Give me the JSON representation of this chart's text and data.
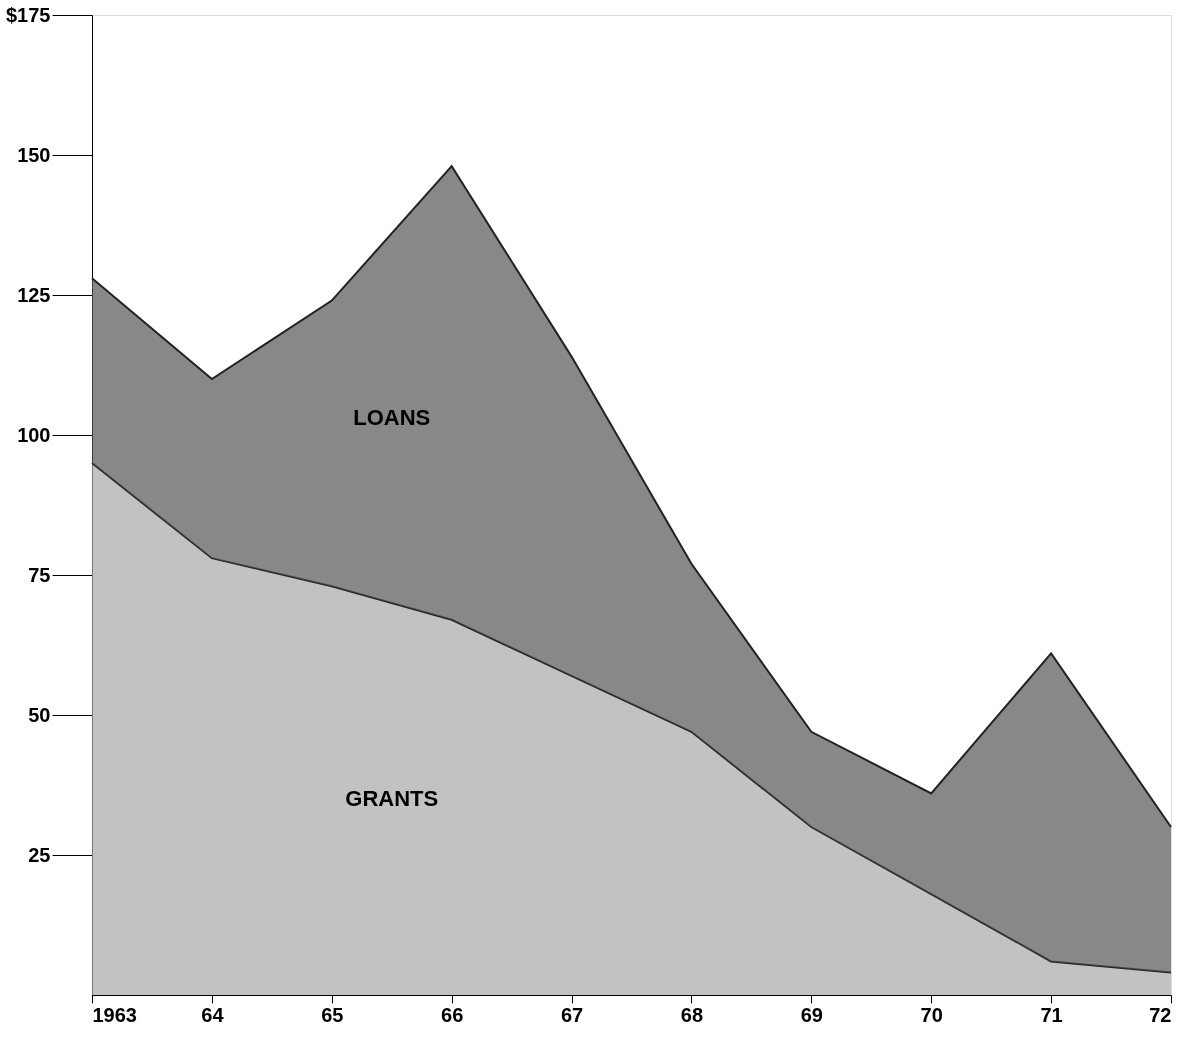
{
  "chart_data": {
    "type": "area",
    "stacked": true,
    "x": [
      1963,
      1964,
      1965,
      1966,
      1967,
      1968,
      1969,
      1970,
      1971,
      1972
    ],
    "series": [
      {
        "name": "GRANTS",
        "color": "#a8a8a8",
        "values": [
          95,
          78,
          73,
          67,
          57,
          47,
          30,
          18,
          6,
          4
        ]
      },
      {
        "name": "LOANS",
        "color": "#555555",
        "values": [
          33,
          32,
          51,
          81,
          57,
          30,
          17,
          18,
          55,
          26
        ]
      }
    ],
    "xlim": [
      1963,
      1972
    ],
    "xticks": [
      {
        "value": 1963,
        "label": "1963"
      },
      {
        "value": 1964,
        "label": "64"
      },
      {
        "value": 1965,
        "label": "65"
      },
      {
        "value": 1966,
        "label": "66"
      },
      {
        "value": 1967,
        "label": "67"
      },
      {
        "value": 1968,
        "label": "68"
      },
      {
        "value": 1969,
        "label": "69"
      },
      {
        "value": 1970,
        "label": "70"
      },
      {
        "value": 1971,
        "label": "71"
      },
      {
        "value": 1972,
        "label": "72"
      }
    ],
    "ylim": [
      0,
      175
    ],
    "yticks": [
      25,
      50,
      75,
      100,
      125,
      150,
      {
        "value": 175,
        "label": "$175"
      }
    ],
    "grid": false
  }
}
